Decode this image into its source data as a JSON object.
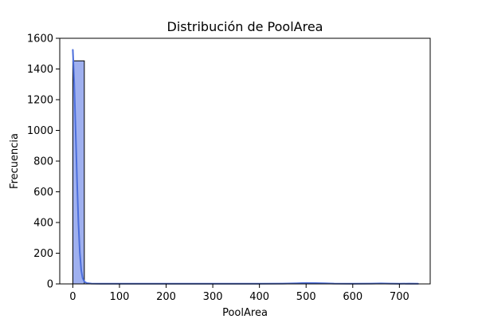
{
  "chart_data": {
    "type": "bar",
    "title": "Distribución de PoolArea",
    "xlabel": "PoolArea",
    "ylabel": "Frecuencia",
    "xlim": [
      -28,
      766
    ],
    "ylim": [
      0,
      1600
    ],
    "x_ticks": [
      0,
      100,
      200,
      300,
      400,
      500,
      600,
      700
    ],
    "y_ticks": [
      0,
      200,
      400,
      600,
      800,
      1000,
      1200,
      1400,
      1600
    ],
    "grid": false,
    "legend": "none",
    "bins": [
      {
        "start": 0,
        "end": 24.67,
        "count": 1453
      },
      {
        "start": 24.67,
        "end": 49.33,
        "count": 0
      },
      {
        "start": 49.33,
        "end": 74,
        "count": 0
      },
      {
        "start": 74,
        "end": 98.67,
        "count": 0
      },
      {
        "start": 98.67,
        "end": 123.33,
        "count": 0
      },
      {
        "start": 123.33,
        "end": 148,
        "count": 0
      },
      {
        "start": 148,
        "end": 172.67,
        "count": 0
      },
      {
        "start": 172.67,
        "end": 197.33,
        "count": 0
      },
      {
        "start": 197.33,
        "end": 222,
        "count": 0
      },
      {
        "start": 222,
        "end": 246.67,
        "count": 0
      },
      {
        "start": 246.67,
        "end": 271.33,
        "count": 0
      },
      {
        "start": 271.33,
        "end": 296,
        "count": 0
      },
      {
        "start": 296,
        "end": 320.67,
        "count": 0
      },
      {
        "start": 320.67,
        "end": 345.33,
        "count": 0
      },
      {
        "start": 345.33,
        "end": 370,
        "count": 0
      },
      {
        "start": 370,
        "end": 394.67,
        "count": 0
      },
      {
        "start": 394.67,
        "end": 419.33,
        "count": 0
      },
      {
        "start": 419.33,
        "end": 444,
        "count": 0
      },
      {
        "start": 444,
        "end": 468.67,
        "count": 1
      },
      {
        "start": 468.67,
        "end": 493.33,
        "count": 1
      },
      {
        "start": 493.33,
        "end": 518,
        "count": 2
      },
      {
        "start": 518,
        "end": 542.67,
        "count": 1
      },
      {
        "start": 542.67,
        "end": 567.33,
        "count": 1
      },
      {
        "start": 567.33,
        "end": 592,
        "count": 0
      },
      {
        "start": 592,
        "end": 616.67,
        "count": 0
      },
      {
        "start": 616.67,
        "end": 641.33,
        "count": 0
      },
      {
        "start": 641.33,
        "end": 666,
        "count": 1
      },
      {
        "start": 666,
        "end": 690.67,
        "count": 0
      },
      {
        "start": 690.67,
        "end": 715.33,
        "count": 0
      },
      {
        "start": 715.33,
        "end": 740,
        "count": 1
      }
    ],
    "kde": {
      "x": [
        0,
        3,
        6,
        9,
        12,
        15,
        18,
        21,
        25,
        30,
        40,
        60,
        100,
        200,
        300,
        400,
        450,
        480,
        500,
        520,
        540,
        560,
        600,
        640,
        660,
        680,
        700,
        720,
        740
      ],
      "y": [
        1525,
        1310,
        1000,
        680,
        400,
        205,
        90,
        38,
        14,
        5,
        2,
        1,
        1,
        1,
        1,
        1,
        2,
        4,
        6,
        5,
        4,
        2,
        1,
        2,
        3,
        2,
        1,
        2,
        1
      ]
    },
    "colors": {
      "bar_fill": "#9fb0ef",
      "bar_edge": "#000000",
      "kde_line": "#4c6edb"
    }
  }
}
